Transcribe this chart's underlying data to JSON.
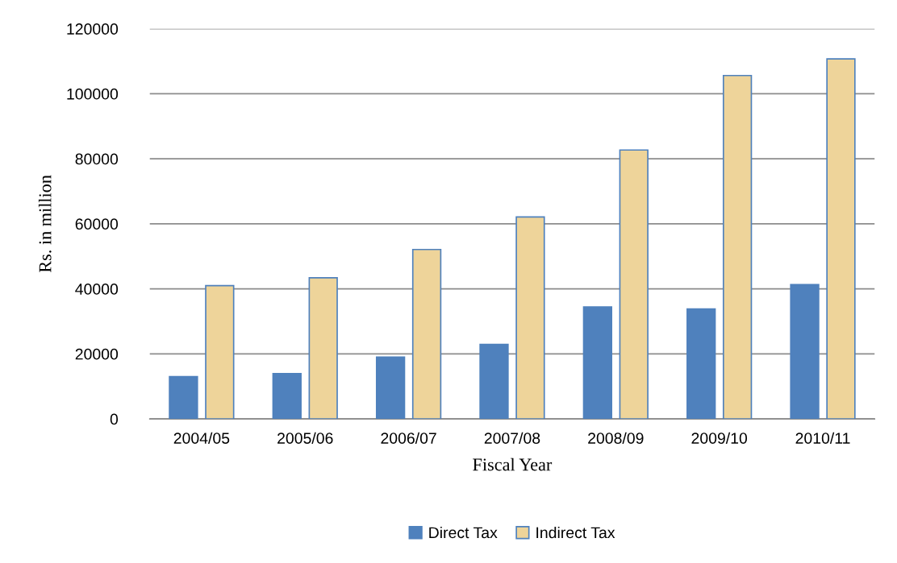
{
  "chart_data": {
    "type": "bar",
    "xlabel": "Fiscal Year",
    "ylabel": "Rs. in million",
    "categories": [
      "2004/05",
      "2005/06",
      "2006/07",
      "2007/08",
      "2008/09",
      "2009/10",
      "2010/11"
    ],
    "series": [
      {
        "name": "Direct Tax",
        "color": "#4f81bd",
        "values": [
          13000,
          13900,
          19000,
          22900,
          34400,
          33800,
          41300
        ]
      },
      {
        "name": "Indirect Tax",
        "color": "#eed49a",
        "values": [
          41000,
          43400,
          52100,
          62100,
          82700,
          105600,
          110700
        ]
      }
    ],
    "ylim": [
      0,
      120000
    ],
    "yticks": [
      0,
      20000,
      40000,
      60000,
      80000,
      100000,
      120000
    ],
    "grid": "y",
    "legend": "bottom"
  }
}
